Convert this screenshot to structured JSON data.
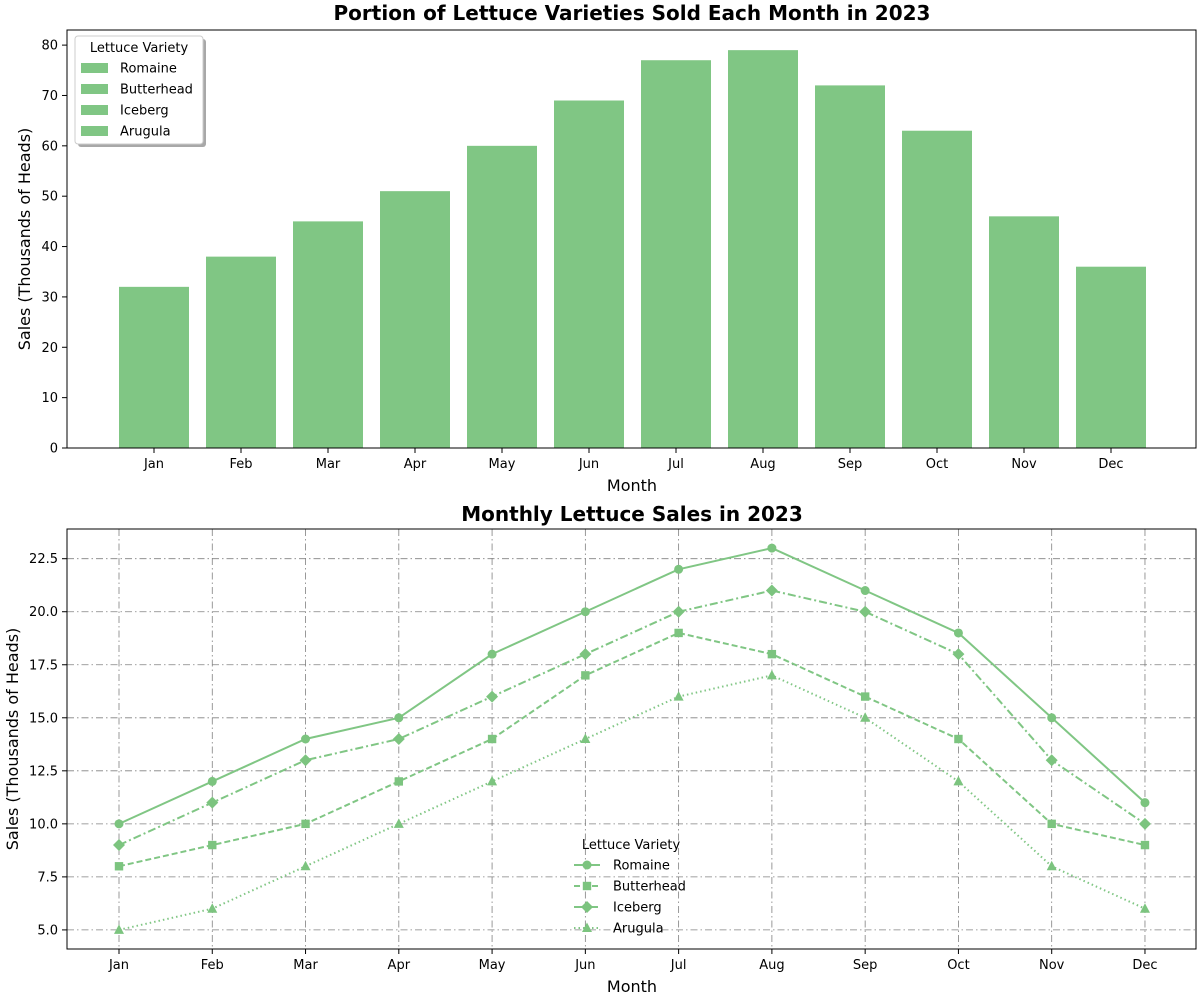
{
  "colors": {
    "series": "#80c684",
    "marker_fill": "#7cc47f",
    "grid": "#808080",
    "axis": "#000000"
  },
  "chart_data": [
    {
      "type": "bar",
      "title": "Portion of Lettuce Varieties Sold Each Month in 2023",
      "xlabel": "Month",
      "ylabel": "Sales (Thousands of Heads)",
      "categories": [
        "Jan",
        "Feb",
        "Mar",
        "Apr",
        "May",
        "Jun",
        "Jul",
        "Aug",
        "Sep",
        "Oct",
        "Nov",
        "Dec"
      ],
      "values": [
        32,
        38,
        45,
        51,
        60,
        69,
        77,
        79,
        72,
        63,
        46,
        36
      ],
      "ylim": [
        0,
        83
      ],
      "yticks": [
        0,
        10,
        20,
        30,
        40,
        50,
        60,
        70,
        80
      ],
      "grid": false,
      "legend": {
        "title": "Lettuce Variety",
        "placement": "top-left",
        "entries": [
          "Romaine",
          "Butterhead",
          "Iceberg",
          "Arugula"
        ]
      }
    },
    {
      "type": "line",
      "title": "Monthly Lettuce Sales in 2023",
      "xlabel": "Month",
      "ylabel": "Sales (Thousands of Heads)",
      "categories": [
        "Jan",
        "Feb",
        "Mar",
        "Apr",
        "May",
        "Jun",
        "Jul",
        "Aug",
        "Sep",
        "Oct",
        "Nov",
        "Dec"
      ],
      "ylim": [
        4.1,
        23.9
      ],
      "yticks": [
        "5.0",
        "7.5",
        "10.0",
        "12.5",
        "15.0",
        "17.5",
        "20.0",
        "22.5"
      ],
      "grid": true,
      "series": [
        {
          "name": "Romaine",
          "values": [
            10,
            12,
            14,
            15,
            18,
            20,
            22,
            23,
            21,
            19,
            15,
            11
          ],
          "linestyle": "solid",
          "marker": "circle"
        },
        {
          "name": "Butterhead",
          "values": [
            8,
            9,
            10,
            12,
            14,
            17,
            19,
            18,
            16,
            14,
            10,
            9
          ],
          "linestyle": "dashed",
          "marker": "square"
        },
        {
          "name": "Iceberg",
          "values": [
            9,
            11,
            13,
            14,
            16,
            18,
            20,
            21,
            20,
            18,
            13,
            10
          ],
          "linestyle": "dashdot",
          "marker": "diamond"
        },
        {
          "name": "Arugula",
          "values": [
            5,
            6,
            8,
            10,
            12,
            14,
            16,
            17,
            15,
            12,
            8,
            6
          ],
          "linestyle": "dotted",
          "marker": "triangle"
        }
      ],
      "legend": {
        "title": "Lettuce Variety",
        "placement": "lower-center"
      }
    }
  ]
}
